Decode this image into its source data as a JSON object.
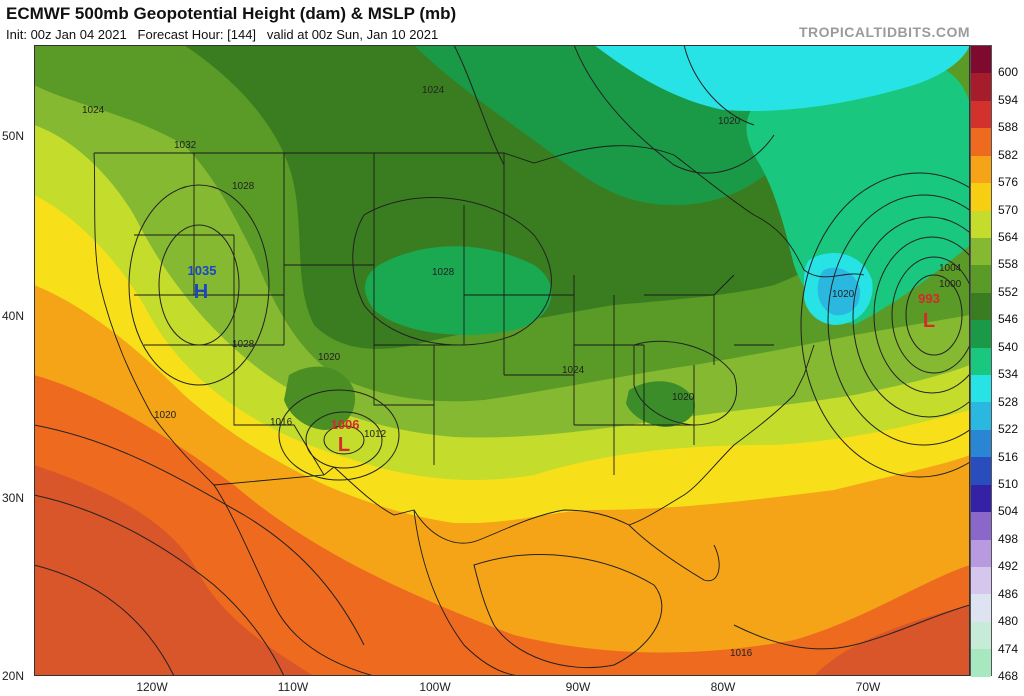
{
  "header": {
    "title": "ECMWF 500mb Geopotential Height (dam) & MSLP (mb)",
    "init": "Init: 00z Jan 04 2021",
    "forecast_hour": "Forecast Hour: [144]",
    "valid": "valid at 00z Sun, Jan 10 2021",
    "brand": "TROPICALTIDBITS.COM"
  },
  "axes": {
    "latitude_labels": [
      "50N",
      "40N",
      "30N",
      "20N"
    ],
    "longitude_labels": [
      "120W",
      "110W",
      "100W",
      "90W",
      "80W",
      "70W"
    ]
  },
  "colorbar": {
    "labels": [
      "600",
      "594",
      "588",
      "582",
      "576",
      "570",
      "564",
      "558",
      "552",
      "546",
      "540",
      "534",
      "528",
      "522",
      "516",
      "510",
      "504",
      "498",
      "492",
      "486",
      "480",
      "474",
      "468"
    ],
    "colors": [
      "#7e0a30",
      "#a51d2a",
      "#d3312c",
      "#ee6a1e",
      "#f5a418",
      "#f7cf12",
      "#c4dc2c",
      "#86b932",
      "#5a9a26",
      "#3a7d20",
      "#1a9a46",
      "#1ac77e",
      "#28e3e6",
      "#2ab8e0",
      "#2a86d2",
      "#2a4dbd",
      "#3421a6",
      "#8a68c9",
      "#b79ae0",
      "#d6c6ee",
      "#dde3f0",
      "#c6ecd8",
      "#a8e8c0"
    ]
  },
  "pressure_centers": [
    {
      "type": "H",
      "value": "1035",
      "color": "#1a45c8"
    },
    {
      "type": "L",
      "value": "1006",
      "color": "#d42a2a"
    },
    {
      "type": "L",
      "value": "993",
      "color": "#d42a2a"
    }
  ],
  "isobar_labels": [
    "1024",
    "1032",
    "1028",
    "1024",
    "1020",
    "1028",
    "1028",
    "1020",
    "1016",
    "1012",
    "1020",
    "1024",
    "1020",
    "1020",
    "1004",
    "1000",
    "1016"
  ]
}
